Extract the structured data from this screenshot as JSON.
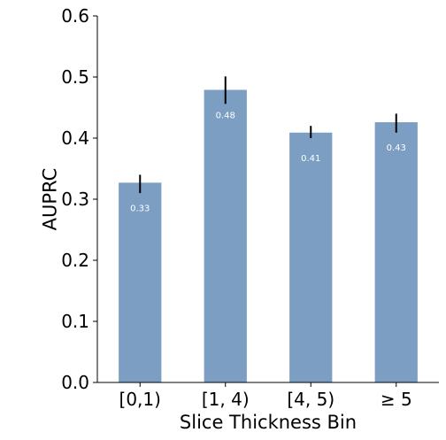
{
  "chart_data": {
    "type": "bar",
    "title": "",
    "xlabel": "Slice Thickness Bin",
    "ylabel": "AUPRC",
    "categories": [
      "[0,1)",
      "[1, 4)",
      "[4, 5)",
      "≥ 5"
    ],
    "values": [
      0.327,
      0.479,
      0.409,
      0.426
    ],
    "data_labels": [
      "0.33",
      "0.48",
      "0.41",
      "0.43"
    ],
    "error_low": [
      0.31,
      0.456,
      0.4,
      0.409
    ],
    "error_high": [
      0.34,
      0.501,
      0.42,
      0.44
    ],
    "ylim": [
      0.0,
      0.6
    ],
    "yticks": [
      "0.0",
      "0.1",
      "0.2",
      "0.3",
      "0.4",
      "0.5",
      "0.6"
    ],
    "bar_color": "#7b9ec2",
    "error_color": "#000000",
    "grid": false,
    "legend": "none"
  }
}
